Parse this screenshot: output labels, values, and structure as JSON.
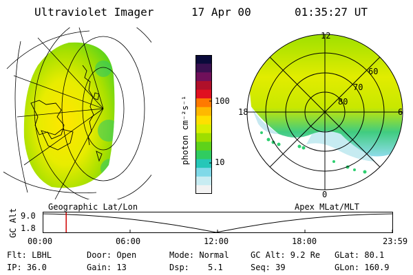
{
  "header": {
    "title": "Ultraviolet Imager",
    "date": "17 Apr 00",
    "time": "01:35:27 UT"
  },
  "colorbar": {
    "unit_label": "photon cm⁻²s⁻¹",
    "tick_labels": [
      "100",
      "10"
    ],
    "colors": [
      "#0a0a3a",
      "#3a1050",
      "#70105a",
      "#b0102a",
      "#e01020",
      "#ff7a00",
      "#ffb800",
      "#ffe000",
      "#d8ee00",
      "#9ede00",
      "#5ed21a",
      "#30cc60",
      "#26c7b8",
      "#7fd9e8",
      "#c8ecf2",
      "#f2f2f2"
    ]
  },
  "polar": {
    "mlt_labels": [
      "12",
      "18",
      "6",
      "0"
    ],
    "lat_labels": [
      "60",
      "70",
      "80"
    ]
  },
  "timeline": {
    "left_label": "Geographic Lat/Lon",
    "right_label": "Apex MLat/MLT",
    "axis_label": "GC Alt",
    "y_ticks": [
      "9.0",
      "1.8"
    ],
    "x_ticks": [
      "00:00",
      "06:00",
      "12:00",
      "18:00",
      "23:59"
    ],
    "current_marker_hours": 1.59,
    "marker_color": "#d00000"
  },
  "status": {
    "filter": "Flt: LBHL",
    "ip": "IP: 36.0",
    "door": "Door: Open",
    "gain": "Gain: 13",
    "mode": "Mode: Normal",
    "dsp_label": "Dsp:",
    "dsp_value": "5.1",
    "gc_alt": "GC Alt: 9.2 Re",
    "seq": "Seq: 39",
    "glat": "GLat:  80.1",
    "glon": "GLon: 160.9"
  }
}
